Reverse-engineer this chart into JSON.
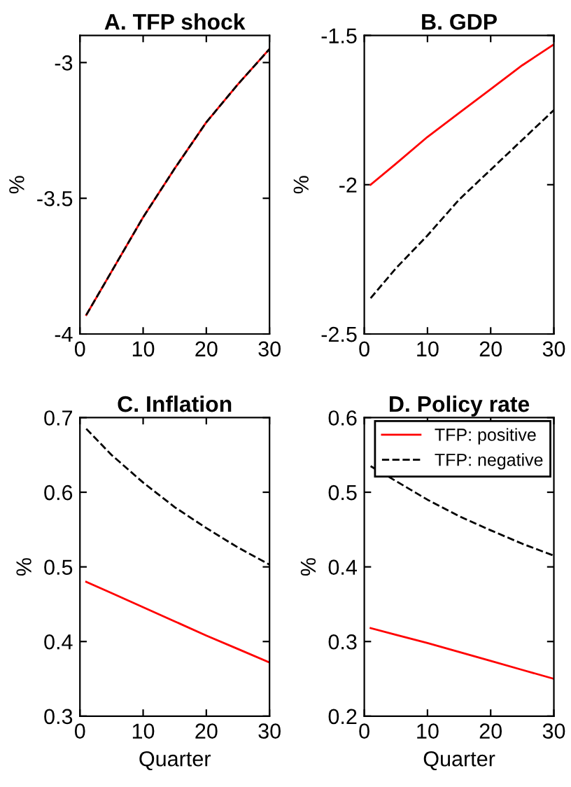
{
  "chart_data": [
    {
      "type": "line",
      "title": "A. TFP shock",
      "ylabel": "%",
      "x": [
        1,
        5,
        10,
        15,
        20,
        25,
        30
      ],
      "xlim": [
        0,
        30
      ],
      "xticks": [
        0,
        10,
        20,
        30
      ],
      "ylim": [
        -4,
        -2.9
      ],
      "yticks": [
        -4,
        -3.5,
        -3
      ],
      "grid": false,
      "legend": false,
      "series": [
        {
          "color": "#ff0000",
          "line_style": "solid",
          "values": [
            -3.93,
            -3.77,
            -3.57,
            -3.39,
            -3.22,
            -3.08,
            -2.95
          ]
        },
        {
          "color": "#000000",
          "line_style": "dashed",
          "values": [
            -3.93,
            -3.77,
            -3.57,
            -3.39,
            -3.22,
            -3.08,
            -2.95
          ]
        }
      ]
    },
    {
      "type": "line",
      "title": "B. GDP",
      "ylabel": "%",
      "x": [
        1,
        5,
        10,
        15,
        20,
        25,
        30
      ],
      "xlim": [
        0,
        30
      ],
      "xticks": [
        0,
        10,
        20,
        30
      ],
      "ylim": [
        -2.5,
        -1.5
      ],
      "yticks": [
        -2.5,
        -2,
        -1.5
      ],
      "grid": false,
      "legend": false,
      "series": [
        {
          "color": "#ff0000",
          "line_style": "solid",
          "values": [
            -2.0,
            -1.93,
            -1.84,
            -1.76,
            -1.68,
            -1.6,
            -1.53
          ]
        },
        {
          "color": "#000000",
          "line_style": "dashed",
          "values": [
            -2.38,
            -2.28,
            -2.17,
            -2.05,
            -1.95,
            -1.85,
            -1.75
          ]
        }
      ]
    },
    {
      "type": "line",
      "title": "C. Inflation",
      "ylabel": "%",
      "xlabel": "Quarter",
      "x": [
        1,
        5,
        10,
        15,
        20,
        25,
        30
      ],
      "xlim": [
        0,
        30
      ],
      "xticks": [
        0,
        10,
        20,
        30
      ],
      "ylim": [
        0.3,
        0.7
      ],
      "yticks": [
        0.3,
        0.4,
        0.5,
        0.6,
        0.7
      ],
      "grid": false,
      "legend": false,
      "series": [
        {
          "color": "#ff0000",
          "line_style": "solid",
          "values": [
            0.48,
            0.465,
            0.446,
            0.427,
            0.408,
            0.39,
            0.372
          ]
        },
        {
          "color": "#000000",
          "line_style": "dashed",
          "values": [
            0.685,
            0.65,
            0.613,
            0.58,
            0.552,
            0.526,
            0.503
          ]
        }
      ]
    },
    {
      "type": "line",
      "title": "D. Policy rate",
      "ylabel": "%",
      "xlabel": "Quarter",
      "x": [
        1,
        5,
        10,
        15,
        20,
        25,
        30
      ],
      "xlim": [
        0,
        30
      ],
      "xticks": [
        0,
        10,
        20,
        30
      ],
      "ylim": [
        0.2,
        0.6
      ],
      "yticks": [
        0.2,
        0.3,
        0.4,
        0.5,
        0.6
      ],
      "grid": false,
      "legend": "top right",
      "series": [
        {
          "name": "TFP: positive",
          "color": "#ff0000",
          "line_style": "solid",
          "values": [
            0.318,
            0.309,
            0.298,
            0.286,
            0.274,
            0.262,
            0.25
          ]
        },
        {
          "name": "TFP: negative",
          "color": "#000000",
          "line_style": "dashed",
          "values": [
            0.535,
            0.515,
            0.49,
            0.468,
            0.449,
            0.431,
            0.415
          ]
        }
      ]
    }
  ]
}
